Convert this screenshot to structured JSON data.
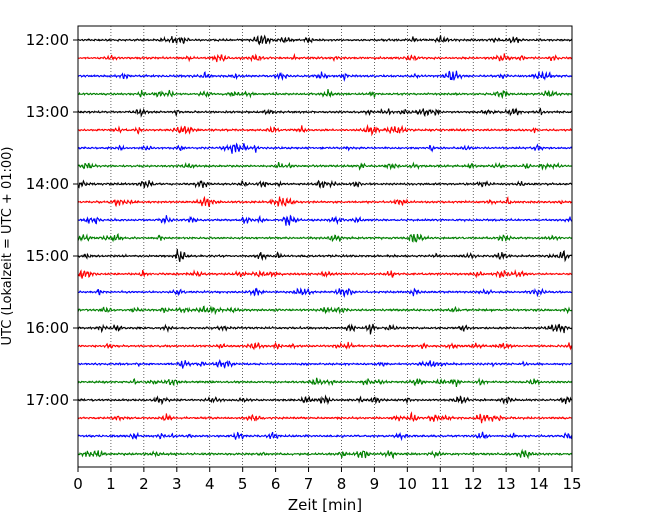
{
  "chart_data": {
    "type": "line",
    "title": "",
    "xlabel": "Zeit  [min]",
    "ylabel": "UTC (Lokalzeit = UTC + 01:00)",
    "xlim": [
      0,
      15
    ],
    "x_ticks": [
      "0",
      "1",
      "2",
      "3",
      "4",
      "5",
      "6",
      "7",
      "8",
      "9",
      "10",
      "11",
      "12",
      "13",
      "14",
      "15"
    ],
    "y_tick_labels": [
      "12:00",
      "13:00",
      "14:00",
      "15:00",
      "16:00",
      "17:00"
    ],
    "grid": "vertical dotted",
    "trace_interval_min": 15,
    "series_colors": [
      "#000000",
      "#ff0000",
      "#0000ff",
      "#008000"
    ],
    "traces": [
      {
        "start": "12:00",
        "color": "#000000"
      },
      {
        "start": "12:15",
        "color": "#ff0000"
      },
      {
        "start": "12:30",
        "color": "#0000ff"
      },
      {
        "start": "12:45",
        "color": "#008000"
      },
      {
        "start": "13:00",
        "color": "#000000"
      },
      {
        "start": "13:15",
        "color": "#ff0000"
      },
      {
        "start": "13:30",
        "color": "#0000ff"
      },
      {
        "start": "13:45",
        "color": "#008000"
      },
      {
        "start": "14:00",
        "color": "#000000"
      },
      {
        "start": "14:15",
        "color": "#ff0000"
      },
      {
        "start": "14:30",
        "color": "#0000ff"
      },
      {
        "start": "14:45",
        "color": "#008000"
      },
      {
        "start": "15:00",
        "color": "#000000"
      },
      {
        "start": "15:15",
        "color": "#ff0000"
      },
      {
        "start": "15:30",
        "color": "#0000ff"
      },
      {
        "start": "15:45",
        "color": "#008000"
      },
      {
        "start": "16:00",
        "color": "#000000"
      },
      {
        "start": "16:15",
        "color": "#ff0000"
      },
      {
        "start": "16:30",
        "color": "#0000ff"
      },
      {
        "start": "16:45",
        "color": "#008000"
      },
      {
        "start": "17:00",
        "color": "#000000"
      },
      {
        "start": "17:15",
        "color": "#ff0000"
      },
      {
        "start": "17:30",
        "color": "#0000ff"
      },
      {
        "start": "17:45",
        "color": "#008000"
      }
    ]
  }
}
